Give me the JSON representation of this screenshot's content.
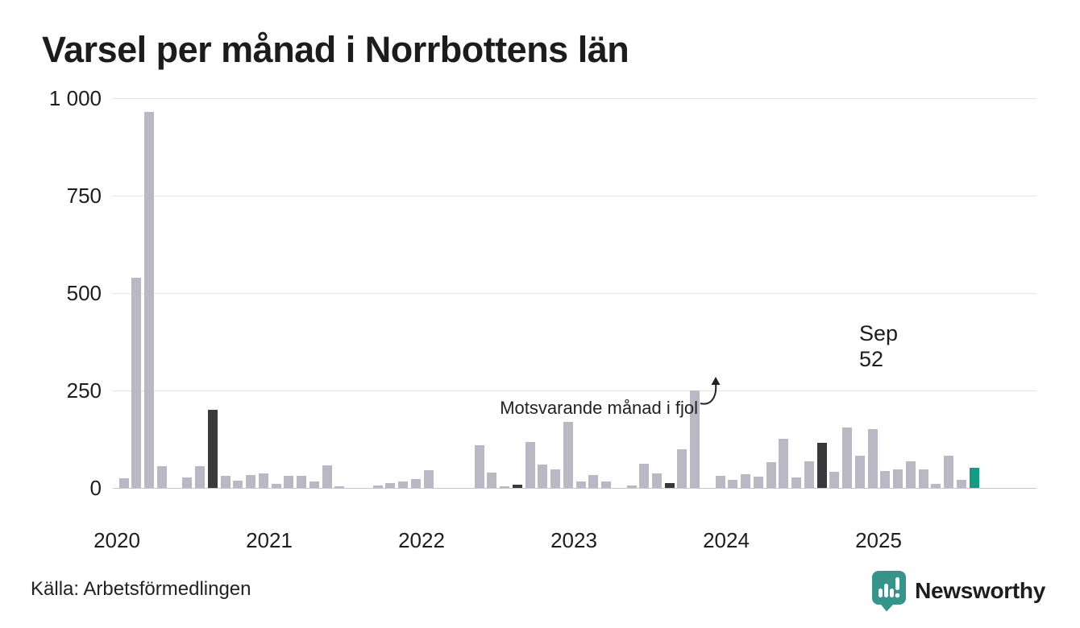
{
  "title": "Varsel per månad i Norrbottens län",
  "annotation": {
    "text": "Motsvarande månad i fjol"
  },
  "highlight_label": {
    "month": "Sep",
    "value": "52"
  },
  "footer": {
    "source": "Källa: Arbetsförmedlingen"
  },
  "brand": {
    "name": "Newsworthy"
  },
  "colors": {
    "normal": "#b9b8c4",
    "september": "#39393c",
    "current": "#159b82",
    "brand_teal": "#37948b",
    "grid": "#e5e5e8",
    "baseline": "#c7c7cc",
    "text": "#1d1d1d"
  },
  "chart_data": {
    "type": "bar",
    "title": "Varsel per månad i Norrbottens län",
    "xlabel": "",
    "ylabel": "",
    "ylim": [
      0,
      1000
    ],
    "grid": true,
    "yticks": [
      {
        "v": 0,
        "label": "0"
      },
      {
        "v": 250,
        "label": "250"
      },
      {
        "v": 500,
        "label": "500"
      },
      {
        "v": 750,
        "label": "750"
      },
      {
        "v": 1000,
        "label": "1 000"
      }
    ],
    "year_labels": [
      "2020",
      "2021",
      "2022",
      "2023",
      "2024",
      "2025"
    ],
    "legend": {
      "september_dark": "Motsvarande månad i fjol",
      "current_teal": "Sep 2025 = 52"
    },
    "series": [
      {
        "month": "2020-01",
        "value": 0,
        "kind": "normal"
      },
      {
        "month": "2020-02",
        "value": 24,
        "kind": "normal"
      },
      {
        "month": "2020-03",
        "value": 540,
        "kind": "normal"
      },
      {
        "month": "2020-04",
        "value": 965,
        "kind": "normal"
      },
      {
        "month": "2020-05",
        "value": 55,
        "kind": "normal"
      },
      {
        "month": "2020-06",
        "value": 0,
        "kind": "normal"
      },
      {
        "month": "2020-07",
        "value": 27,
        "kind": "normal"
      },
      {
        "month": "2020-08",
        "value": 55,
        "kind": "normal"
      },
      {
        "month": "2020-09",
        "value": 200,
        "kind": "september"
      },
      {
        "month": "2020-10",
        "value": 30,
        "kind": "normal"
      },
      {
        "month": "2020-11",
        "value": 18,
        "kind": "normal"
      },
      {
        "month": "2020-12",
        "value": 34,
        "kind": "normal"
      },
      {
        "month": "2021-01",
        "value": 37,
        "kind": "normal"
      },
      {
        "month": "2021-02",
        "value": 11,
        "kind": "normal"
      },
      {
        "month": "2021-03",
        "value": 32,
        "kind": "normal"
      },
      {
        "month": "2021-04",
        "value": 32,
        "kind": "normal"
      },
      {
        "month": "2021-05",
        "value": 17,
        "kind": "normal"
      },
      {
        "month": "2021-06",
        "value": 58,
        "kind": "normal"
      },
      {
        "month": "2021-07",
        "value": 5,
        "kind": "normal"
      },
      {
        "month": "2021-08",
        "value": 0,
        "kind": "normal"
      },
      {
        "month": "2021-09",
        "value": 0,
        "kind": "september"
      },
      {
        "month": "2021-10",
        "value": 7,
        "kind": "normal"
      },
      {
        "month": "2021-11",
        "value": 13,
        "kind": "normal"
      },
      {
        "month": "2021-12",
        "value": 17,
        "kind": "normal"
      },
      {
        "month": "2022-01",
        "value": 22,
        "kind": "normal"
      },
      {
        "month": "2022-02",
        "value": 45,
        "kind": "normal"
      },
      {
        "month": "2022-03",
        "value": 0,
        "kind": "normal"
      },
      {
        "month": "2022-04",
        "value": 0,
        "kind": "normal"
      },
      {
        "month": "2022-05",
        "value": 0,
        "kind": "normal"
      },
      {
        "month": "2022-06",
        "value": 110,
        "kind": "normal"
      },
      {
        "month": "2022-07",
        "value": 40,
        "kind": "normal"
      },
      {
        "month": "2022-08",
        "value": 5,
        "kind": "normal"
      },
      {
        "month": "2022-09",
        "value": 8,
        "kind": "september"
      },
      {
        "month": "2022-10",
        "value": 117,
        "kind": "normal"
      },
      {
        "month": "2022-11",
        "value": 60,
        "kind": "normal"
      },
      {
        "month": "2022-12",
        "value": 48,
        "kind": "normal"
      },
      {
        "month": "2023-01",
        "value": 170,
        "kind": "normal"
      },
      {
        "month": "2023-02",
        "value": 17,
        "kind": "normal"
      },
      {
        "month": "2023-03",
        "value": 34,
        "kind": "normal"
      },
      {
        "month": "2023-04",
        "value": 17,
        "kind": "normal"
      },
      {
        "month": "2023-05",
        "value": 0,
        "kind": "normal"
      },
      {
        "month": "2023-06",
        "value": 6,
        "kind": "normal"
      },
      {
        "month": "2023-07",
        "value": 61,
        "kind": "normal"
      },
      {
        "month": "2023-08",
        "value": 38,
        "kind": "normal"
      },
      {
        "month": "2023-09",
        "value": 13,
        "kind": "september"
      },
      {
        "month": "2023-10",
        "value": 100,
        "kind": "normal"
      },
      {
        "month": "2023-11",
        "value": 250,
        "kind": "normal"
      },
      {
        "month": "2023-12",
        "value": 0,
        "kind": "normal"
      },
      {
        "month": "2024-01",
        "value": 32,
        "kind": "normal"
      },
      {
        "month": "2024-02",
        "value": 20,
        "kind": "normal"
      },
      {
        "month": "2024-03",
        "value": 35,
        "kind": "normal"
      },
      {
        "month": "2024-04",
        "value": 28,
        "kind": "normal"
      },
      {
        "month": "2024-05",
        "value": 66,
        "kind": "normal"
      },
      {
        "month": "2024-06",
        "value": 125,
        "kind": "normal"
      },
      {
        "month": "2024-07",
        "value": 27,
        "kind": "normal"
      },
      {
        "month": "2024-08",
        "value": 68,
        "kind": "normal"
      },
      {
        "month": "2024-09",
        "value": 115,
        "kind": "september"
      },
      {
        "month": "2024-10",
        "value": 41,
        "kind": "normal"
      },
      {
        "month": "2024-11",
        "value": 155,
        "kind": "normal"
      },
      {
        "month": "2024-12",
        "value": 82,
        "kind": "normal"
      },
      {
        "month": "2025-01",
        "value": 150,
        "kind": "normal"
      },
      {
        "month": "2025-02",
        "value": 44,
        "kind": "normal"
      },
      {
        "month": "2025-03",
        "value": 48,
        "kind": "normal"
      },
      {
        "month": "2025-04",
        "value": 69,
        "kind": "normal"
      },
      {
        "month": "2025-05",
        "value": 48,
        "kind": "normal"
      },
      {
        "month": "2025-06",
        "value": 11,
        "kind": "normal"
      },
      {
        "month": "2025-07",
        "value": 83,
        "kind": "normal"
      },
      {
        "month": "2025-08",
        "value": 20,
        "kind": "normal"
      },
      {
        "month": "2025-09",
        "value": 52,
        "kind": "current"
      }
    ]
  }
}
